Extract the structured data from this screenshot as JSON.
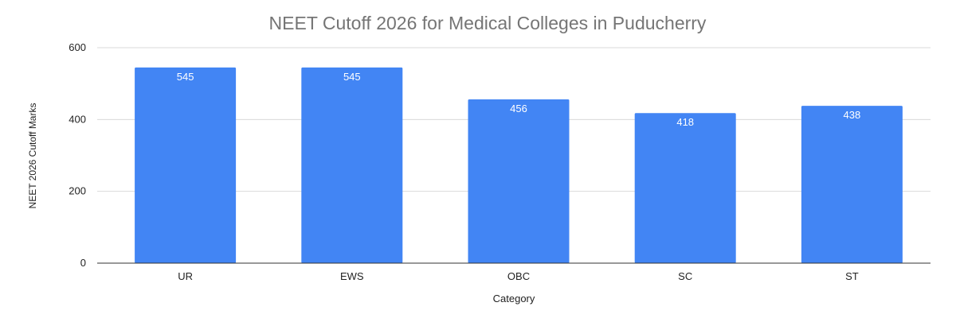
{
  "chart_data": {
    "type": "bar",
    "title": "NEET Cutoff 2026 for Medical Colleges in Puducherry",
    "xlabel": "Category",
    "ylabel": "NEET 2026 Cutoff Marks",
    "categories": [
      "UR",
      "EWS",
      "OBC",
      "SC",
      "ST"
    ],
    "values": [
      545,
      545,
      456,
      418,
      438
    ],
    "data_labels": [
      "545",
      "545",
      "456",
      "418",
      "438"
    ],
    "ylim": [
      0,
      600
    ],
    "yticks": [
      0,
      200,
      400,
      600
    ],
    "ytick_labels": [
      "0",
      "200",
      "400",
      "600"
    ],
    "grid": true,
    "legend": "none",
    "bar_color": "#4285f4"
  }
}
